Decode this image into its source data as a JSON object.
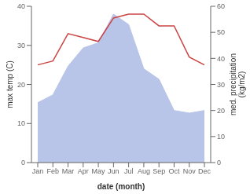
{
  "chart_data": {
    "type": "line",
    "xlabel": "date (month)",
    "ylabel": "max temp (C)",
    "y2label": "med. precipitation\n(kg/m2)",
    "categories": [
      "Jan",
      "Feb",
      "Mar",
      "Apr",
      "May",
      "Jun",
      "Jul",
      "Aug",
      "Sep",
      "Oct",
      "Nov",
      "Dec"
    ],
    "series": [
      {
        "type": "area",
        "axis": "y2",
        "color": "#b8c4e8",
        "values": [
          23,
          26,
          37,
          44,
          46,
          57,
          53,
          36,
          32,
          20,
          19,
          20
        ]
      },
      {
        "type": "line",
        "axis": "y",
        "color": "#cc4444",
        "values": [
          25,
          26,
          33,
          32,
          31,
          37,
          38,
          38,
          35,
          35,
          27,
          25
        ]
      }
    ],
    "ylim": [
      0,
      40
    ],
    "yticks": [
      0,
      10,
      20,
      30,
      40
    ],
    "y2lim": [
      0,
      60
    ],
    "y2ticks": [
      0,
      10,
      20,
      30,
      40,
      50,
      60
    ],
    "grid": false
  }
}
